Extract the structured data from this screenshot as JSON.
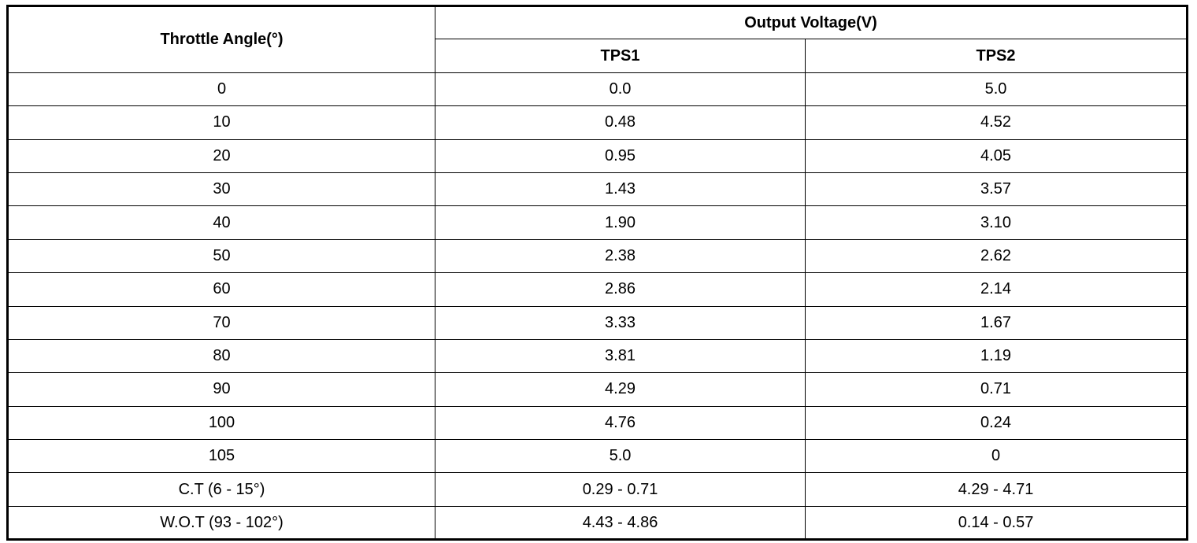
{
  "table": {
    "header": {
      "angle": "Throttle Angle(°)",
      "group": "Output Voltage(V)",
      "columns": [
        "TPS1",
        "TPS2"
      ]
    },
    "rows": [
      [
        "0",
        "0.0",
        "5.0"
      ],
      [
        "10",
        "0.48",
        "4.52"
      ],
      [
        "20",
        "0.95",
        "4.05"
      ],
      [
        "30",
        "1.43",
        "3.57"
      ],
      [
        "40",
        "1.90",
        "3.10"
      ],
      [
        "50",
        "2.38",
        "2.62"
      ],
      [
        "60",
        "2.86",
        "2.14"
      ],
      [
        "70",
        "3.33",
        "1.67"
      ],
      [
        "80",
        "3.81",
        "1.19"
      ],
      [
        "90",
        "4.29",
        "0.71"
      ],
      [
        "100",
        "4.76",
        "0.24"
      ],
      [
        "105",
        "5.0",
        "0"
      ],
      [
        "C.T (6 - 15°)",
        "0.29 - 0.71",
        "4.29 - 4.71"
      ],
      [
        "W.O.T (93 - 102°)",
        "4.43 - 4.86",
        "0.14 - 0.57"
      ]
    ]
  }
}
